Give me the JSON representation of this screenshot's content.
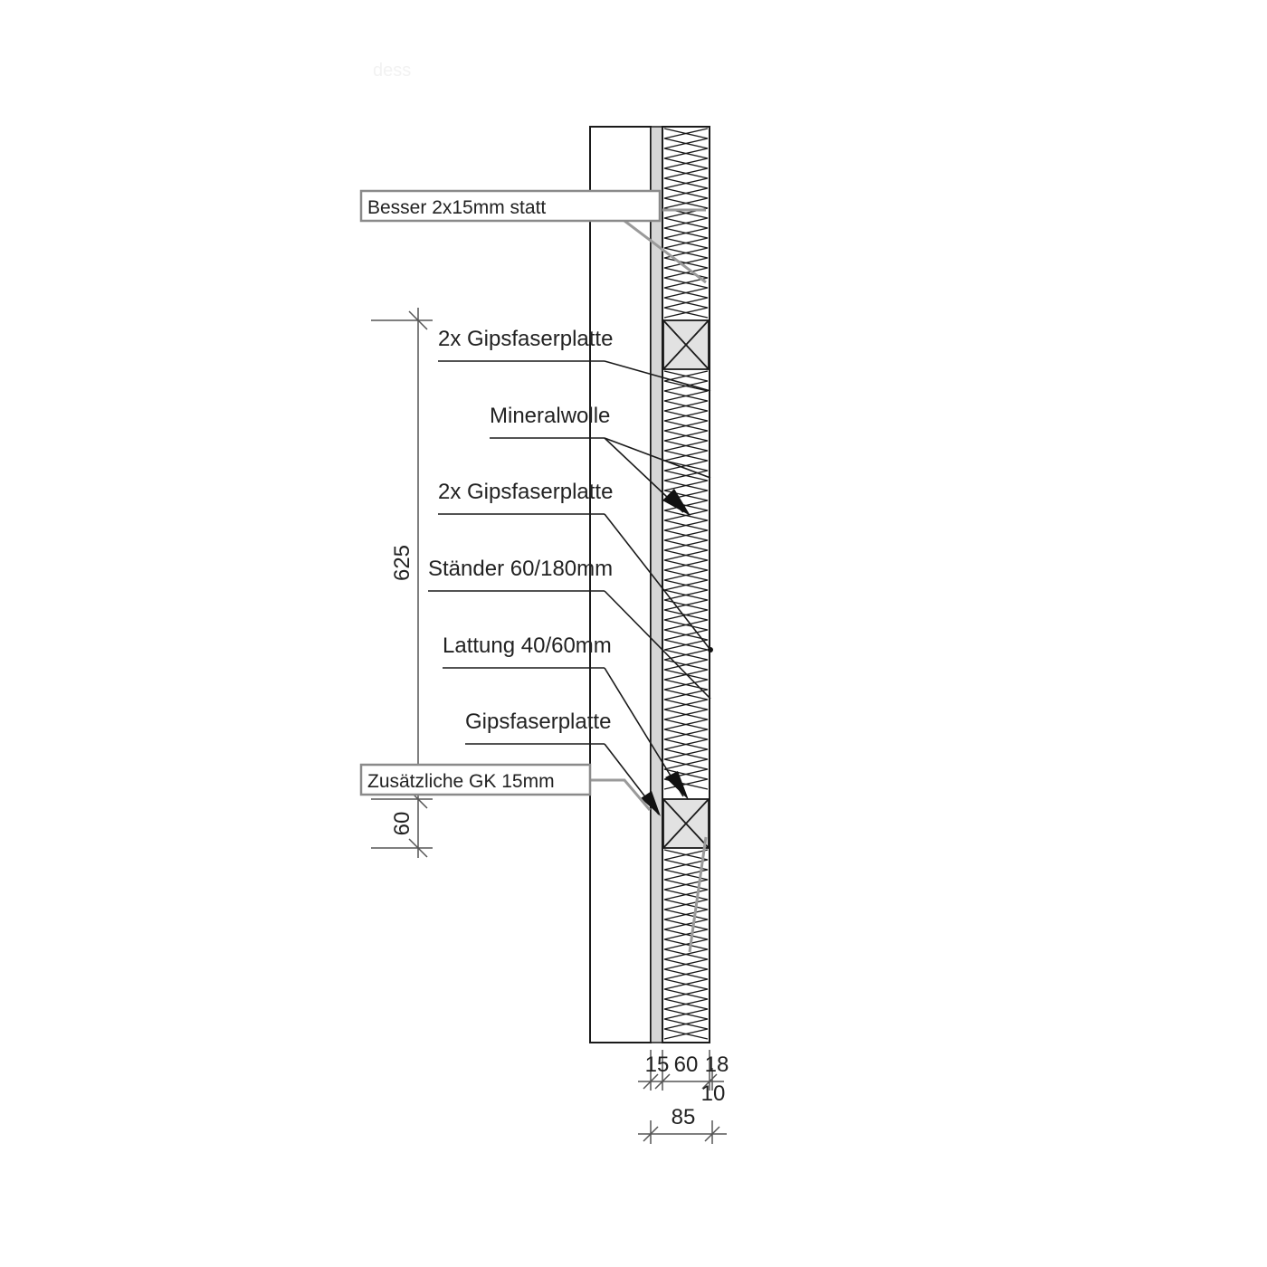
{
  "faint_marks": [
    "dess"
  ],
  "callouts": {
    "besser": "Besser 2x15mm statt",
    "zusaetzliche": "Zusätzliche GK 15mm"
  },
  "labels": {
    "gips1": "2x Gipsfaserplatte",
    "mineralwolle": "Mineralwolle",
    "gips2": "2x Gipsfaserplatte",
    "staender": "Ständer 60/180mm",
    "lattung": "Lattung 40/60mm",
    "gips3": "Gipsfaserplatte"
  },
  "dimensions": {
    "spacing": "625",
    "batten": "60",
    "d15": "15",
    "d60": "60",
    "d18": "18",
    "d10": "10",
    "total": "85"
  },
  "colors": {
    "line": "#1a1a1a",
    "board": "#d6d6d6",
    "callout_border": "#8a8a8a",
    "callout_line": "#9a9a9a"
  }
}
